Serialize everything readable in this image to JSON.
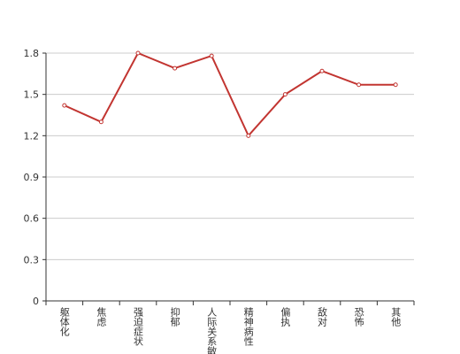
{
  "chart_data": {
    "type": "line",
    "categories": [
      "躯体化",
      "焦虑",
      "强迫症状",
      "抑郁",
      "人际关系敏感",
      "精神病性",
      "偏执",
      "敌对",
      "恐怖",
      "其他"
    ],
    "series": [
      {
        "color": "#c23531",
        "values": [
          1.42,
          1.3,
          1.8,
          1.69,
          1.78,
          1.2,
          1.5,
          1.67,
          1.57,
          1.57
        ]
      }
    ],
    "ylim": [
      0,
      1.8
    ],
    "yticks": [
      0,
      0.3,
      0.6,
      0.9,
      1.2,
      1.5,
      1.8
    ],
    "grid": true
  }
}
